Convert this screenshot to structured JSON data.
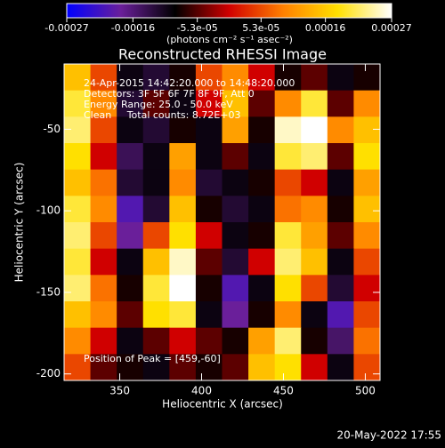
{
  "chart_data": {
    "type": "heatmap",
    "title": "Reconstructed RHESSI Image",
    "x_label": "Heliocentric X (arcsec)",
    "y_label": "Heliocentric Y (arcsec)",
    "colorbar_label": "(photons cm⁻² s⁻¹ asec⁻²)",
    "annotations": [
      "24-Apr-2015 14:42:20.000 to 14:48:20.000",
      "Detectors: 3F 5F 6F 7F 8F 9F, Att 0",
      "Energy Range: 25.0 - 50.0 keV",
      "Clean     Total counts: 8.72E+03"
    ],
    "peak_label": "Position of Peak = [459,-60]",
    "footer": "20-May-2022 17:55",
    "xlim": [
      316,
      509
    ],
    "ylim": [
      -204,
      -10
    ],
    "xticks": [
      350,
      400,
      450,
      500
    ],
    "yticks": [
      -50,
      -100,
      -150,
      -200
    ],
    "clim": [
      -0.00027,
      0.00027
    ],
    "cticks": [
      -0.00027,
      -0.00016,
      {
        "value": -5.3e-05,
        "label": "-5.3e-05"
      },
      {
        "value": 5.3e-05,
        "label": "5.3e-05"
      },
      0.00016,
      0.00027
    ],
    "colormap": [
      "#0000ff",
      "#6a1f9a",
      "#000000",
      "#d00000",
      "#ff8000",
      "#ffe000",
      "#ffffff"
    ],
    "z": [
      [
        0.00015,
        5e-05,
        -0.0001,
        -0.00012,
        -8e-05,
        5e-05,
        0.0001,
        0,
        -8e-05,
        -5e-05,
        -0.0001,
        -8e-05
      ],
      [
        0.0002,
        0.0001,
        -0.00012,
        -5e-05,
        -0.0001,
        0,
        0.00015,
        -5e-05,
        0.0001,
        0.0002,
        -5e-05,
        0.0001
      ],
      [
        0.00022,
        5e-05,
        -0.0001,
        -0.00012,
        -8e-05,
        -0.0001,
        0.00012,
        -8e-05,
        0.00025,
        0.00027,
        0.0001,
        0.00015
      ],
      [
        0.00018,
        0,
        -0.00014,
        -0.0001,
        0.00012,
        -0.0001,
        -5e-05,
        -0.0001,
        0.0002,
        0.00022,
        -5e-05,
        0.00018
      ],
      [
        0.00015,
        8e-05,
        -0.00012,
        -0.0001,
        0.0001,
        -0.00012,
        -0.0001,
        -8e-05,
        5e-05,
        0,
        -0.0001,
        0.00012
      ],
      [
        0.0002,
        0.0001,
        -0.0002,
        -0.00012,
        0.00015,
        -8e-05,
        -0.00012,
        -0.0001,
        8e-05,
        0.0001,
        -8e-05,
        0.00015
      ],
      [
        0.00022,
        5e-05,
        -0.00018,
        5e-05,
        0.00018,
        0,
        -0.0001,
        -8e-05,
        0.0002,
        0.00012,
        -5e-05,
        0.0001
      ],
      [
        0.0002,
        0,
        -0.0001,
        0.00015,
        0.00025,
        -5e-05,
        -0.00012,
        0,
        0.00022,
        0.00015,
        -0.0001,
        5e-05
      ],
      [
        0.00022,
        8e-05,
        -8e-05,
        0.0002,
        0.00027,
        -8e-05,
        -0.0002,
        -0.0001,
        0.00018,
        5e-05,
        -0.00012,
        0
      ],
      [
        0.00015,
        0.0001,
        -5e-05,
        0.00018,
        0.0002,
        -0.0001,
        -0.00018,
        -8e-05,
        0.0001,
        -0.0001,
        -0.0002,
        5e-05
      ],
      [
        0.0001,
        0,
        -0.0001,
        -5e-05,
        0,
        -5e-05,
        -8e-05,
        0.00012,
        0.00022,
        -8e-05,
        -0.00015,
        8e-05
      ],
      [
        5e-05,
        -5e-05,
        -8e-05,
        -0.0001,
        -5e-05,
        -8e-05,
        -5e-05,
        0.00015,
        0.00018,
        0,
        -0.0001,
        5e-05
      ]
    ]
  }
}
